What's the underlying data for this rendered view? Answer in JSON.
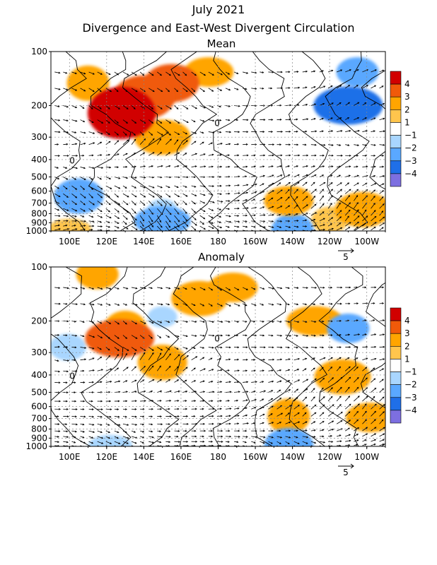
{
  "header": {
    "title": "July 2021",
    "subtitle": "Divergence and East-West Divergent Circulation"
  },
  "chart_data": [
    {
      "type": "heatmap",
      "title": "Mean",
      "x_label_ticks": [
        "100E",
        "120E",
        "140E",
        "160E",
        "180",
        "160W",
        "140W",
        "120W",
        "100W"
      ],
      "x_ticks_deg_east": [
        100,
        120,
        140,
        160,
        180,
        200,
        220,
        240,
        260
      ],
      "xlim_deg_east": [
        90,
        270
      ],
      "y_ticks_hpa": [
        100,
        200,
        300,
        400,
        500,
        600,
        700,
        800,
        900,
        1000
      ],
      "y_scale": "log",
      "ylim_hpa": [
        1000,
        100
      ],
      "colorbar_levels": [
        4,
        3,
        2,
        1,
        -1,
        -2,
        -3,
        -4
      ],
      "colorbar_colors": [
        "#d10000",
        "#f05a0a",
        "#ffa500",
        "#ffc54d",
        "#ffffff",
        "#a9d6ff",
        "#5aa8ff",
        "#1f6fe8",
        "#7d6fe0"
      ],
      "contour_label": "0",
      "reference_vector": "5",
      "blobs": [
        {
          "lon": 128,
          "p": 220,
          "value": 4
        },
        {
          "lon": 155,
          "p": 150,
          "value": 3
        },
        {
          "lon": 140,
          "p": 180,
          "value": 3
        },
        {
          "lon": 110,
          "p": 150,
          "value": 2
        },
        {
          "lon": 175,
          "p": 130,
          "value": 2
        },
        {
          "lon": 150,
          "p": 300,
          "value": 2
        },
        {
          "lon": 250,
          "p": 200,
          "value": -3
        },
        {
          "lon": 255,
          "p": 130,
          "value": -2
        },
        {
          "lon": 105,
          "p": 640,
          "value": -2
        },
        {
          "lon": 150,
          "p": 880,
          "value": -2
        },
        {
          "lon": 150,
          "p": 760,
          "value": -1
        },
        {
          "lon": 220,
          "p": 1000,
          "value": -2
        },
        {
          "lon": 218,
          "p": 680,
          "value": 2
        },
        {
          "lon": 258,
          "p": 760,
          "value": 2
        },
        {
          "lon": 240,
          "p": 870,
          "value": 1
        },
        {
          "lon": 100,
          "p": 980,
          "value": 1
        }
      ]
    },
    {
      "type": "heatmap",
      "title": "Anomaly",
      "x_label_ticks": [
        "100E",
        "120E",
        "140E",
        "160E",
        "180",
        "160W",
        "140W",
        "120W",
        "100W"
      ],
      "x_ticks_deg_east": [
        100,
        120,
        140,
        160,
        180,
        200,
        220,
        240,
        260
      ],
      "xlim_deg_east": [
        90,
        270
      ],
      "y_ticks_hpa": [
        100,
        200,
        300,
        400,
        500,
        600,
        700,
        800,
        900,
        1000
      ],
      "y_scale": "log",
      "ylim_hpa": [
        1000,
        100
      ],
      "colorbar_levels": [
        4,
        3,
        2,
        1,
        -1,
        -2,
        -3,
        -4
      ],
      "colorbar_colors": [
        "#d10000",
        "#f05a0a",
        "#ffa500",
        "#ffc54d",
        "#ffffff",
        "#a9d6ff",
        "#5aa8ff",
        "#1f6fe8",
        "#7d6fe0"
      ],
      "contour_label": "0",
      "reference_vector": "5",
      "blobs": [
        {
          "lon": 127,
          "p": 250,
          "value": 3
        },
        {
          "lon": 130,
          "p": 220,
          "value": 2
        },
        {
          "lon": 188,
          "p": 130,
          "value": 2
        },
        {
          "lon": 170,
          "p": 150,
          "value": 2
        },
        {
          "lon": 115,
          "p": 110,
          "value": 2
        },
        {
          "lon": 150,
          "p": 340,
          "value": 2
        },
        {
          "lon": 232,
          "p": 200,
          "value": 2
        },
        {
          "lon": 218,
          "p": 680,
          "value": 2
        },
        {
          "lon": 262,
          "p": 690,
          "value": 2
        },
        {
          "lon": 247,
          "p": 410,
          "value": 2
        },
        {
          "lon": 250,
          "p": 220,
          "value": -2
        },
        {
          "lon": 150,
          "p": 190,
          "value": -1
        },
        {
          "lon": 99,
          "p": 280,
          "value": -1
        },
        {
          "lon": 122,
          "p": 990,
          "value": -1
        },
        {
          "lon": 218,
          "p": 990,
          "value": -2
        }
      ]
    }
  ]
}
